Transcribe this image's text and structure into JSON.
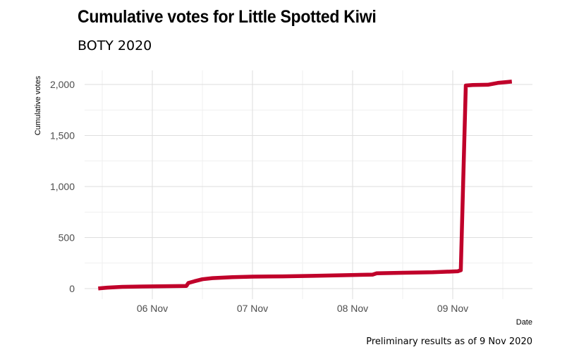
{
  "chart_data": {
    "type": "line",
    "title": "Cumulative votes for Little Spotted Kiwi",
    "subtitle": "BOTY 2020",
    "caption": "Preliminary results as of 9 Nov 2020",
    "xlabel": "Date",
    "ylabel": "Cumulative votes",
    "x_unit": "days relative to 06 Nov 2020 00:00",
    "xlim": [
      -0.68,
      3.8
    ],
    "ylim": [
      -100,
      2150
    ],
    "x_ticks": [
      {
        "value": 0,
        "label": "06 Nov"
      },
      {
        "value": 1,
        "label": "07 Nov"
      },
      {
        "value": 2,
        "label": "08 Nov"
      },
      {
        "value": 3,
        "label": "09 Nov"
      }
    ],
    "x_minor_ticks": [
      -0.5,
      0.5,
      1.5,
      2.5,
      3.5
    ],
    "y_ticks": [
      {
        "value": 0,
        "label": "0"
      },
      {
        "value": 500,
        "label": "500"
      },
      {
        "value": 1000,
        "label": "1,000"
      },
      {
        "value": 1500,
        "label": "1,500"
      },
      {
        "value": 2000,
        "label": "2,000"
      }
    ],
    "y_minor_ticks": [
      250,
      750,
      1250,
      1750
    ],
    "grid": true,
    "legend": "none",
    "series": [
      {
        "name": "Little Spotted Kiwi",
        "color": "#c0002a",
        "points": [
          {
            "x": -0.54,
            "y": 2
          },
          {
            "x": -0.45,
            "y": 10
          },
          {
            "x": -0.3,
            "y": 17
          },
          {
            "x": -0.1,
            "y": 21
          },
          {
            "x": 0.2,
            "y": 24
          },
          {
            "x": 0.34,
            "y": 26
          },
          {
            "x": 0.36,
            "y": 55
          },
          {
            "x": 0.42,
            "y": 72
          },
          {
            "x": 0.5,
            "y": 92
          },
          {
            "x": 0.6,
            "y": 103
          },
          {
            "x": 0.8,
            "y": 112
          },
          {
            "x": 1.0,
            "y": 117
          },
          {
            "x": 1.3,
            "y": 120
          },
          {
            "x": 1.6,
            "y": 125
          },
          {
            "x": 1.9,
            "y": 131
          },
          {
            "x": 2.2,
            "y": 137
          },
          {
            "x": 2.24,
            "y": 150
          },
          {
            "x": 2.5,
            "y": 155
          },
          {
            "x": 2.8,
            "y": 160
          },
          {
            "x": 3.05,
            "y": 170
          },
          {
            "x": 3.08,
            "y": 180
          },
          {
            "x": 3.13,
            "y": 1990
          },
          {
            "x": 3.2,
            "y": 1995
          },
          {
            "x": 3.35,
            "y": 1997
          },
          {
            "x": 3.45,
            "y": 2015
          },
          {
            "x": 3.59,
            "y": 2028
          }
        ]
      }
    ]
  }
}
